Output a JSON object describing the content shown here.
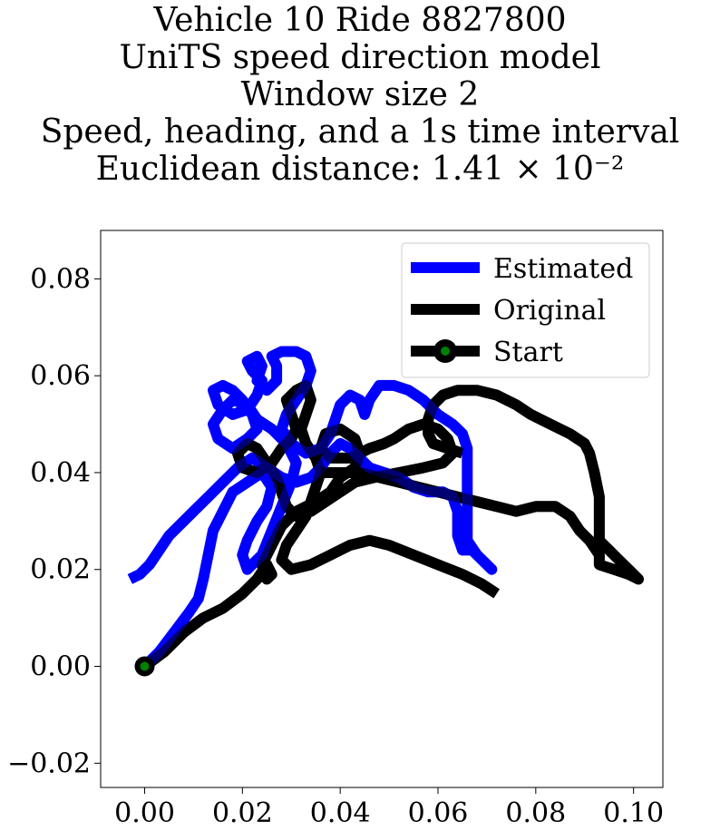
{
  "chart_data": {
    "type": "line",
    "title_lines": [
      "Vehicle 10 Ride 8827800",
      "UniTS speed direction model",
      "Window size 2",
      "Speed, heading, and a 1s time interval",
      "Euclidean distance: 1.41 × 10⁻²"
    ],
    "xlim": [
      -0.009,
      0.106
    ],
    "ylim": [
      -0.025,
      0.09
    ],
    "x_ticks": [
      0.0,
      0.02,
      0.04,
      0.06,
      0.08,
      0.1
    ],
    "x_tick_labels": [
      "0.00",
      "0.02",
      "0.04",
      "0.06",
      "0.08",
      "0.10"
    ],
    "y_ticks": [
      -0.02,
      0.0,
      0.02,
      0.04,
      0.06,
      0.08
    ],
    "y_tick_labels": [
      "−0.02",
      "0.00",
      "0.02",
      "0.04",
      "0.06",
      "0.08"
    ],
    "legend_position": "top-right",
    "series": [
      {
        "name": "Estimated",
        "color": "#0000ff",
        "points": [
          [
            0.0,
            0.0
          ],
          [
            0.003,
            0.003
          ],
          [
            0.006,
            0.007
          ],
          [
            0.009,
            0.011
          ],
          [
            0.011,
            0.014
          ],
          [
            0.012,
            0.018
          ],
          [
            0.013,
            0.023
          ],
          [
            0.014,
            0.028
          ],
          [
            0.016,
            0.032
          ],
          [
            0.018,
            0.036
          ],
          [
            0.021,
            0.038
          ],
          [
            0.024,
            0.04
          ],
          [
            0.026,
            0.037
          ],
          [
            0.025,
            0.033
          ],
          [
            0.023,
            0.03
          ],
          [
            0.021,
            0.026
          ],
          [
            0.02,
            0.023
          ],
          [
            0.021,
            0.02
          ],
          [
            0.024,
            0.023
          ],
          [
            0.026,
            0.028
          ],
          [
            0.028,
            0.033
          ],
          [
            0.03,
            0.038
          ],
          [
            0.031,
            0.042
          ],
          [
            0.029,
            0.046
          ],
          [
            0.026,
            0.049
          ],
          [
            0.023,
            0.051
          ],
          [
            0.021,
            0.054
          ],
          [
            0.018,
            0.055
          ],
          [
            0.016,
            0.053
          ],
          [
            0.014,
            0.05
          ],
          [
            0.015,
            0.047
          ],
          [
            0.018,
            0.045
          ],
          [
            0.021,
            0.047
          ],
          [
            0.023,
            0.049
          ],
          [
            0.022,
            0.052
          ],
          [
            0.02,
            0.055
          ],
          [
            0.018,
            0.057
          ],
          [
            0.016,
            0.058
          ],
          [
            0.014,
            0.057
          ],
          [
            0.015,
            0.054
          ],
          [
            0.018,
            0.052
          ],
          [
            0.021,
            0.053
          ],
          [
            0.023,
            0.056
          ],
          [
            0.024,
            0.059
          ],
          [
            0.022,
            0.061
          ],
          [
            0.021,
            0.063
          ],
          [
            0.023,
            0.064
          ],
          [
            0.024,
            0.062
          ],
          [
            0.023,
            0.059
          ],
          [
            0.025,
            0.057
          ],
          [
            0.027,
            0.059
          ],
          [
            0.027,
            0.062
          ],
          [
            0.026,
            0.064
          ],
          [
            0.028,
            0.065
          ],
          [
            0.031,
            0.065
          ],
          [
            0.033,
            0.064
          ],
          [
            0.034,
            0.061
          ],
          [
            0.033,
            0.058
          ],
          [
            0.031,
            0.055
          ],
          [
            0.029,
            0.052
          ],
          [
            0.028,
            0.049
          ],
          [
            0.03,
            0.046
          ],
          [
            0.033,
            0.044
          ],
          [
            0.036,
            0.045
          ],
          [
            0.038,
            0.048
          ],
          [
            0.039,
            0.051
          ],
          [
            0.04,
            0.054
          ],
          [
            0.042,
            0.056
          ],
          [
            0.044,
            0.055
          ],
          [
            0.045,
            0.052
          ],
          [
            0.046,
            0.055
          ],
          [
            0.048,
            0.058
          ],
          [
            0.051,
            0.058
          ],
          [
            0.054,
            0.057
          ],
          [
            0.057,
            0.055
          ],
          [
            0.06,
            0.052
          ],
          [
            0.063,
            0.05
          ],
          [
            0.065,
            0.048
          ],
          [
            0.066,
            0.045
          ],
          [
            0.066,
            0.04
          ],
          [
            0.066,
            0.035
          ],
          [
            0.066,
            0.03
          ],
          [
            0.066,
            0.026
          ],
          [
            0.068,
            0.023
          ],
          [
            0.071,
            0.02
          ],
          [
            0.069,
            0.022
          ],
          [
            0.067,
            0.024
          ],
          [
            0.065,
            0.024
          ],
          [
            0.064,
            0.027
          ],
          [
            0.064,
            0.032
          ],
          [
            0.063,
            0.035
          ],
          [
            0.061,
            0.036
          ],
          [
            0.058,
            0.036
          ],
          [
            0.055,
            0.037
          ],
          [
            0.052,
            0.039
          ],
          [
            0.049,
            0.04
          ],
          [
            0.046,
            0.041
          ],
          [
            0.044,
            0.043
          ],
          [
            0.042,
            0.045
          ],
          [
            0.04,
            0.046
          ],
          [
            0.038,
            0.044
          ],
          [
            0.036,
            0.041
          ],
          [
            0.034,
            0.039
          ],
          [
            0.031,
            0.038
          ],
          [
            0.028,
            0.039
          ],
          [
            0.025,
            0.041
          ],
          [
            0.022,
            0.043
          ],
          [
            0.019,
            0.041
          ],
          [
            0.016,
            0.038
          ],
          [
            0.013,
            0.035
          ],
          [
            0.01,
            0.032
          ],
          [
            0.008,
            0.03
          ],
          [
            0.005,
            0.027
          ],
          [
            0.003,
            0.024
          ],
          [
            0.001,
            0.021
          ],
          [
            -0.001,
            0.019
          ],
          [
            -0.003,
            0.018
          ]
        ]
      },
      {
        "name": "Original",
        "color": "#000000",
        "points": [
          [
            0.0,
            0.0
          ],
          [
            0.004,
            0.003
          ],
          [
            0.008,
            0.007
          ],
          [
            0.012,
            0.01
          ],
          [
            0.016,
            0.012
          ],
          [
            0.02,
            0.015
          ],
          [
            0.023,
            0.018
          ],
          [
            0.025,
            0.021
          ],
          [
            0.026,
            0.019
          ],
          [
            0.025,
            0.018
          ],
          [
            0.024,
            0.021
          ],
          [
            0.026,
            0.025
          ],
          [
            0.028,
            0.029
          ],
          [
            0.031,
            0.032
          ],
          [
            0.035,
            0.034
          ],
          [
            0.038,
            0.036
          ],
          [
            0.04,
            0.039
          ],
          [
            0.043,
            0.041
          ],
          [
            0.044,
            0.044
          ],
          [
            0.043,
            0.047
          ],
          [
            0.04,
            0.049
          ],
          [
            0.037,
            0.048
          ],
          [
            0.036,
            0.045
          ],
          [
            0.038,
            0.043
          ],
          [
            0.042,
            0.043
          ],
          [
            0.046,
            0.045
          ],
          [
            0.049,
            0.046
          ],
          [
            0.051,
            0.047
          ],
          [
            0.054,
            0.049
          ],
          [
            0.057,
            0.05
          ],
          [
            0.06,
            0.049
          ],
          [
            0.062,
            0.047
          ],
          [
            0.063,
            0.044
          ],
          [
            0.061,
            0.042
          ],
          [
            0.057,
            0.041
          ],
          [
            0.052,
            0.04
          ],
          [
            0.047,
            0.039
          ],
          [
            0.043,
            0.038
          ],
          [
            0.04,
            0.036
          ],
          [
            0.037,
            0.034
          ],
          [
            0.034,
            0.032
          ],
          [
            0.031,
            0.031
          ],
          [
            0.029,
            0.033
          ],
          [
            0.028,
            0.036
          ],
          [
            0.027,
            0.039
          ],
          [
            0.025,
            0.042
          ],
          [
            0.023,
            0.045
          ],
          [
            0.021,
            0.046
          ],
          [
            0.019,
            0.044
          ],
          [
            0.02,
            0.041
          ],
          [
            0.023,
            0.04
          ],
          [
            0.026,
            0.042
          ],
          [
            0.028,
            0.045
          ],
          [
            0.03,
            0.047
          ],
          [
            0.031,
            0.049
          ],
          [
            0.03,
            0.052
          ],
          [
            0.029,
            0.055
          ],
          [
            0.031,
            0.057
          ],
          [
            0.033,
            0.058
          ],
          [
            0.034,
            0.055
          ],
          [
            0.033,
            0.052
          ],
          [
            0.032,
            0.049
          ],
          [
            0.033,
            0.046
          ],
          [
            0.035,
            0.043
          ],
          [
            0.036,
            0.04
          ],
          [
            0.035,
            0.037
          ],
          [
            0.034,
            0.034
          ],
          [
            0.033,
            0.031
          ],
          [
            0.031,
            0.028
          ],
          [
            0.029,
            0.025
          ],
          [
            0.028,
            0.022
          ],
          [
            0.03,
            0.02
          ],
          [
            0.034,
            0.021
          ],
          [
            0.038,
            0.023
          ],
          [
            0.042,
            0.025
          ],
          [
            0.046,
            0.026
          ],
          [
            0.05,
            0.025
          ],
          [
            0.055,
            0.023
          ],
          [
            0.06,
            0.021
          ],
          [
            0.065,
            0.019
          ],
          [
            0.069,
            0.017
          ],
          [
            0.072,
            0.015
          ]
        ]
      },
      {
        "name": "Original",
        "color": "#000000",
        "points": [
          [
            0.036,
            0.04
          ],
          [
            0.04,
            0.04
          ],
          [
            0.044,
            0.04
          ],
          [
            0.048,
            0.039
          ],
          [
            0.052,
            0.038
          ],
          [
            0.056,
            0.037
          ],
          [
            0.06,
            0.036
          ],
          [
            0.064,
            0.035
          ],
          [
            0.068,
            0.034
          ],
          [
            0.072,
            0.033
          ],
          [
            0.076,
            0.032
          ],
          [
            0.08,
            0.033
          ],
          [
            0.084,
            0.033
          ],
          [
            0.087,
            0.031
          ],
          [
            0.089,
            0.028
          ],
          [
            0.091,
            0.026
          ],
          [
            0.093,
            0.023
          ],
          [
            0.093,
            0.021
          ],
          [
            0.096,
            0.02
          ],
          [
            0.099,
            0.019
          ],
          [
            0.101,
            0.018
          ],
          [
            0.099,
            0.02
          ],
          [
            0.097,
            0.022
          ],
          [
            0.095,
            0.024
          ],
          [
            0.093,
            0.026
          ],
          [
            0.093,
            0.03
          ],
          [
            0.093,
            0.035
          ],
          [
            0.092,
            0.04
          ],
          [
            0.091,
            0.044
          ],
          [
            0.09,
            0.046
          ],
          [
            0.087,
            0.048
          ],
          [
            0.083,
            0.05
          ],
          [
            0.079,
            0.052
          ],
          [
            0.076,
            0.054
          ],
          [
            0.072,
            0.056
          ],
          [
            0.068,
            0.057
          ],
          [
            0.064,
            0.057
          ],
          [
            0.061,
            0.056
          ],
          [
            0.059,
            0.054
          ],
          [
            0.058,
            0.051
          ],
          [
            0.058,
            0.048
          ],
          [
            0.059,
            0.046
          ],
          [
            0.062,
            0.045
          ],
          [
            0.065,
            0.044
          ]
        ]
      },
      {
        "name": "Start",
        "color": "#008000",
        "points": [
          [
            0.0,
            0.0
          ]
        ]
      }
    ]
  }
}
